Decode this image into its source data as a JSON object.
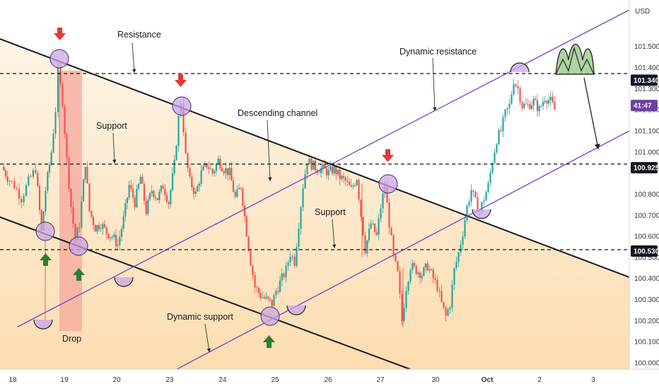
{
  "chart_data": {
    "type": "candlestick",
    "currency": "USD",
    "y_range": [
      99.97,
      101.72
    ],
    "y_ticks": [
      "101.500",
      "101.400",
      "101.300",
      "101.200",
      "101.100",
      "101.000",
      "100.800",
      "100.700",
      "100.600",
      "100.500",
      "100.400",
      "100.300",
      "100.200",
      "100.100",
      "100.000"
    ],
    "x_ticks": [
      "18",
      "19",
      "20",
      "23",
      "24",
      "25",
      "26",
      "27",
      "30",
      "Oct",
      "2",
      "3"
    ],
    "price_tags": [
      {
        "value": 101.34,
        "label": "101.340",
        "style": "dark"
      },
      {
        "value": 100.925,
        "label": "100.925",
        "style": "dark"
      },
      {
        "value": 100.53,
        "label": "100.530",
        "style": "dark"
      },
      {
        "value": 101.22,
        "label": "41:47",
        "style": "purple"
      }
    ],
    "horizontal_levels": [
      101.34,
      100.925,
      100.53
    ],
    "annotations": {
      "resistance": "Resistance",
      "support_left": "Support",
      "descending_channel": "Descending channel",
      "support_right": "Support",
      "dynamic_resistance": "Dynamic resistance",
      "dynamic_support": "Dynamic support",
      "drop": "Drop"
    },
    "colors": {
      "up": "#26a69a",
      "down": "#ef5350",
      "channel": "#1b1b1b",
      "trend": "#7b3fc4",
      "resistance_zone": "#f7c59f"
    }
  }
}
